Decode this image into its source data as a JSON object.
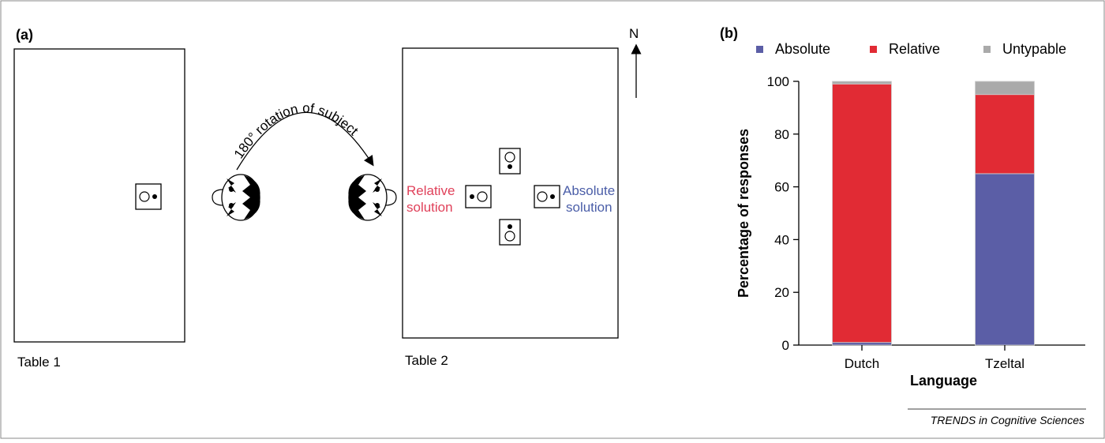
{
  "panel_a": {
    "label": "(a)",
    "table1_label": "Table 1",
    "table2_label": "Table 2",
    "rotation_text": "180° rotation of subject",
    "north_label": "N",
    "relative_label_line1": "Relative",
    "relative_label_line2": "solution",
    "absolute_label_line1": "Absolute",
    "absolute_label_line2": "solution",
    "relative_color": "#e0415a",
    "absolute_color": "#4b5ea8"
  },
  "panel_b": {
    "label": "(b)"
  },
  "chart_data": {
    "type": "bar",
    "stacked": true,
    "categories": [
      "Dutch",
      "Tzeltal"
    ],
    "series": [
      {
        "name": "Absolute",
        "values": [
          1,
          65
        ],
        "color": "#5b5ea6"
      },
      {
        "name": "Relative",
        "values": [
          98,
          30
        ],
        "color": "#e12b34"
      },
      {
        "name": "Untypable",
        "values": [
          1,
          5
        ],
        "color": "#aaaaaa"
      }
    ],
    "xlabel": "Language",
    "ylabel": "Percentage of responses",
    "ylim": [
      0,
      100
    ],
    "yticks": [
      0,
      20,
      40,
      60,
      80,
      100
    ],
    "legend_position": "top"
  },
  "credit": "TRENDS in Cognitive Sciences"
}
